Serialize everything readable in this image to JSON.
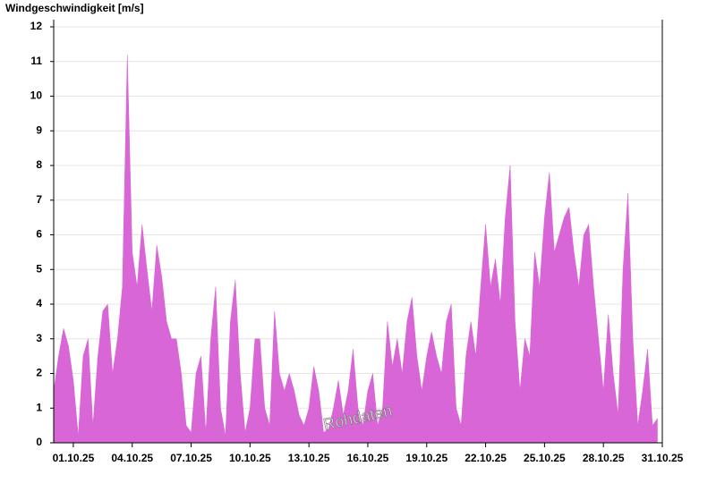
{
  "chart_data": {
    "type": "area",
    "title": "Windgeschwindigkeit [m/s]",
    "annotation": "Rohdaten",
    "color": "#d966d6",
    "grid": true,
    "xlim": [
      0,
      31
    ],
    "xticks": [
      {
        "value": 1,
        "label": "01.10.25"
      },
      {
        "value": 4,
        "label": "04.10.25"
      },
      {
        "value": 7,
        "label": "07.10.25"
      },
      {
        "value": 10,
        "label": "10.10.25"
      },
      {
        "value": 13,
        "label": "13.10.25"
      },
      {
        "value": 16,
        "label": "16.10.25"
      },
      {
        "value": 19,
        "label": "19.10.25"
      },
      {
        "value": 22,
        "label": "22.10.25"
      },
      {
        "value": 25,
        "label": "25.10.25"
      },
      {
        "value": 28,
        "label": "28.10.25"
      },
      {
        "value": 31,
        "label": "31.10.25"
      }
    ],
    "ylim": [
      0,
      12
    ],
    "yticks": [
      0,
      1,
      2,
      3,
      4,
      5,
      6,
      7,
      8,
      9,
      10,
      11,
      12
    ],
    "x": [
      0,
      0.25,
      0.5,
      0.75,
      1,
      1.25,
      1.5,
      1.75,
      2,
      2.25,
      2.5,
      2.75,
      3,
      3.25,
      3.5,
      3.75,
      4,
      4.25,
      4.5,
      4.75,
      5,
      5.25,
      5.5,
      5.75,
      6,
      6.25,
      6.5,
      6.75,
      7,
      7.25,
      7.5,
      7.75,
      8,
      8.25,
      8.5,
      8.75,
      9,
      9.25,
      9.5,
      9.75,
      10,
      10.25,
      10.5,
      10.75,
      11,
      11.25,
      11.5,
      11.75,
      12,
      12.25,
      12.5,
      12.75,
      13,
      13.25,
      13.5,
      13.75,
      14,
      14.25,
      14.5,
      14.75,
      15,
      15.25,
      15.5,
      15.75,
      16,
      16.25,
      16.5,
      16.75,
      17,
      17.25,
      17.5,
      17.75,
      18,
      18.25,
      18.5,
      18.75,
      19,
      19.25,
      19.5,
      19.75,
      20,
      20.25,
      20.5,
      20.75,
      21,
      21.25,
      21.5,
      21.75,
      22,
      22.25,
      22.5,
      22.75,
      23,
      23.25,
      23.5,
      23.75,
      24,
      24.25,
      24.5,
      24.75,
      25,
      25.25,
      25.5,
      25.75,
      26,
      26.25,
      26.5,
      26.75,
      27,
      27.25,
      27.5,
      27.75,
      28,
      28.25,
      28.5,
      28.75,
      29,
      29.25,
      29.5,
      29.75,
      30,
      30.25,
      30.5,
      30.75
    ],
    "values": [
      1.5,
      2.5,
      3.3,
      2.8,
      1.8,
      0.2,
      2.5,
      3.0,
      0.5,
      2.5,
      3.8,
      4.0,
      2.0,
      3.0,
      4.5,
      11.2,
      5.5,
      4.5,
      6.3,
      5.0,
      3.8,
      5.7,
      4.8,
      3.5,
      3.0,
      3.0,
      2.0,
      0.5,
      0.3,
      2.0,
      2.5,
      0.3,
      3.0,
      4.5,
      1.0,
      0.2,
      3.5,
      4.7,
      2.0,
      0.3,
      1.0,
      3.0,
      3.0,
      1.0,
      0.5,
      3.8,
      2.0,
      1.5,
      2.0,
      1.5,
      0.8,
      0.5,
      1.0,
      2.2,
      1.5,
      0.3,
      0.4,
      1.0,
      1.8,
      0.8,
      1.5,
      2.7,
      1.0,
      0.5,
      1.5,
      2.0,
      0.5,
      1.0,
      3.5,
      2.2,
      3.0,
      2.0,
      3.5,
      4.2,
      2.5,
      1.5,
      2.5,
      3.2,
      2.5,
      2.0,
      3.5,
      4.0,
      1.0,
      0.5,
      2.5,
      3.5,
      2.5,
      4.5,
      6.3,
      4.5,
      5.3,
      4.0,
      6.5,
      8.0,
      3.5,
      1.5,
      3.0,
      2.5,
      5.5,
      4.5,
      6.5,
      7.8,
      5.5,
      6.0,
      6.5,
      6.8,
      5.5,
      4.5,
      6.0,
      6.3,
      4.5,
      3.0,
      1.5,
      3.7,
      2.0,
      0.8,
      5.0,
      7.2,
      3.0,
      0.5,
      1.5,
      2.7,
      0.5,
      0.7
    ]
  }
}
